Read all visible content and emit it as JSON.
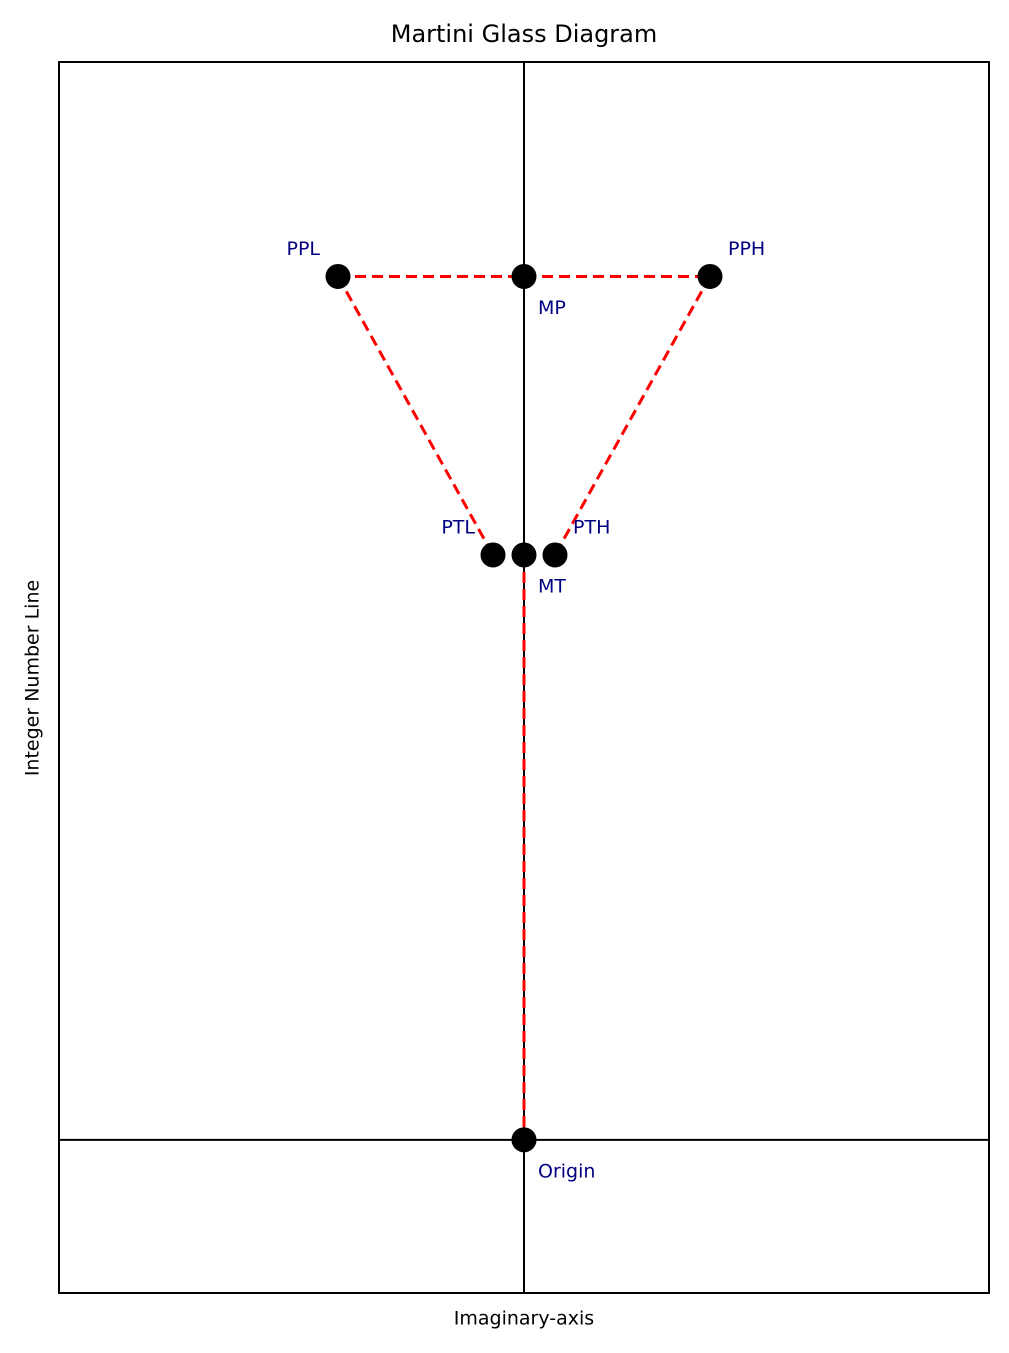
{
  "chart_data": {
    "type": "scatter",
    "title": "Martini Glass Diagram",
    "xlabel": "Imaginary-axis",
    "ylabel": "Integer Number Line",
    "labels": [
      "Origin",
      "MT",
      "PTL",
      "PTH",
      "MP",
      "PPL",
      "PPH"
    ],
    "x": [
      0,
      0,
      -0.5,
      0.5,
      0,
      -3,
      3
    ],
    "values": [
      0,
      2.1,
      2.1,
      2.1,
      3.1,
      3.1,
      3.1
    ],
    "xlim": [
      -7.5,
      7.5
    ],
    "ylim": [
      -0.55,
      3.87
    ],
    "color": "black",
    "line_color": "red",
    "label_color": "navy"
  }
}
